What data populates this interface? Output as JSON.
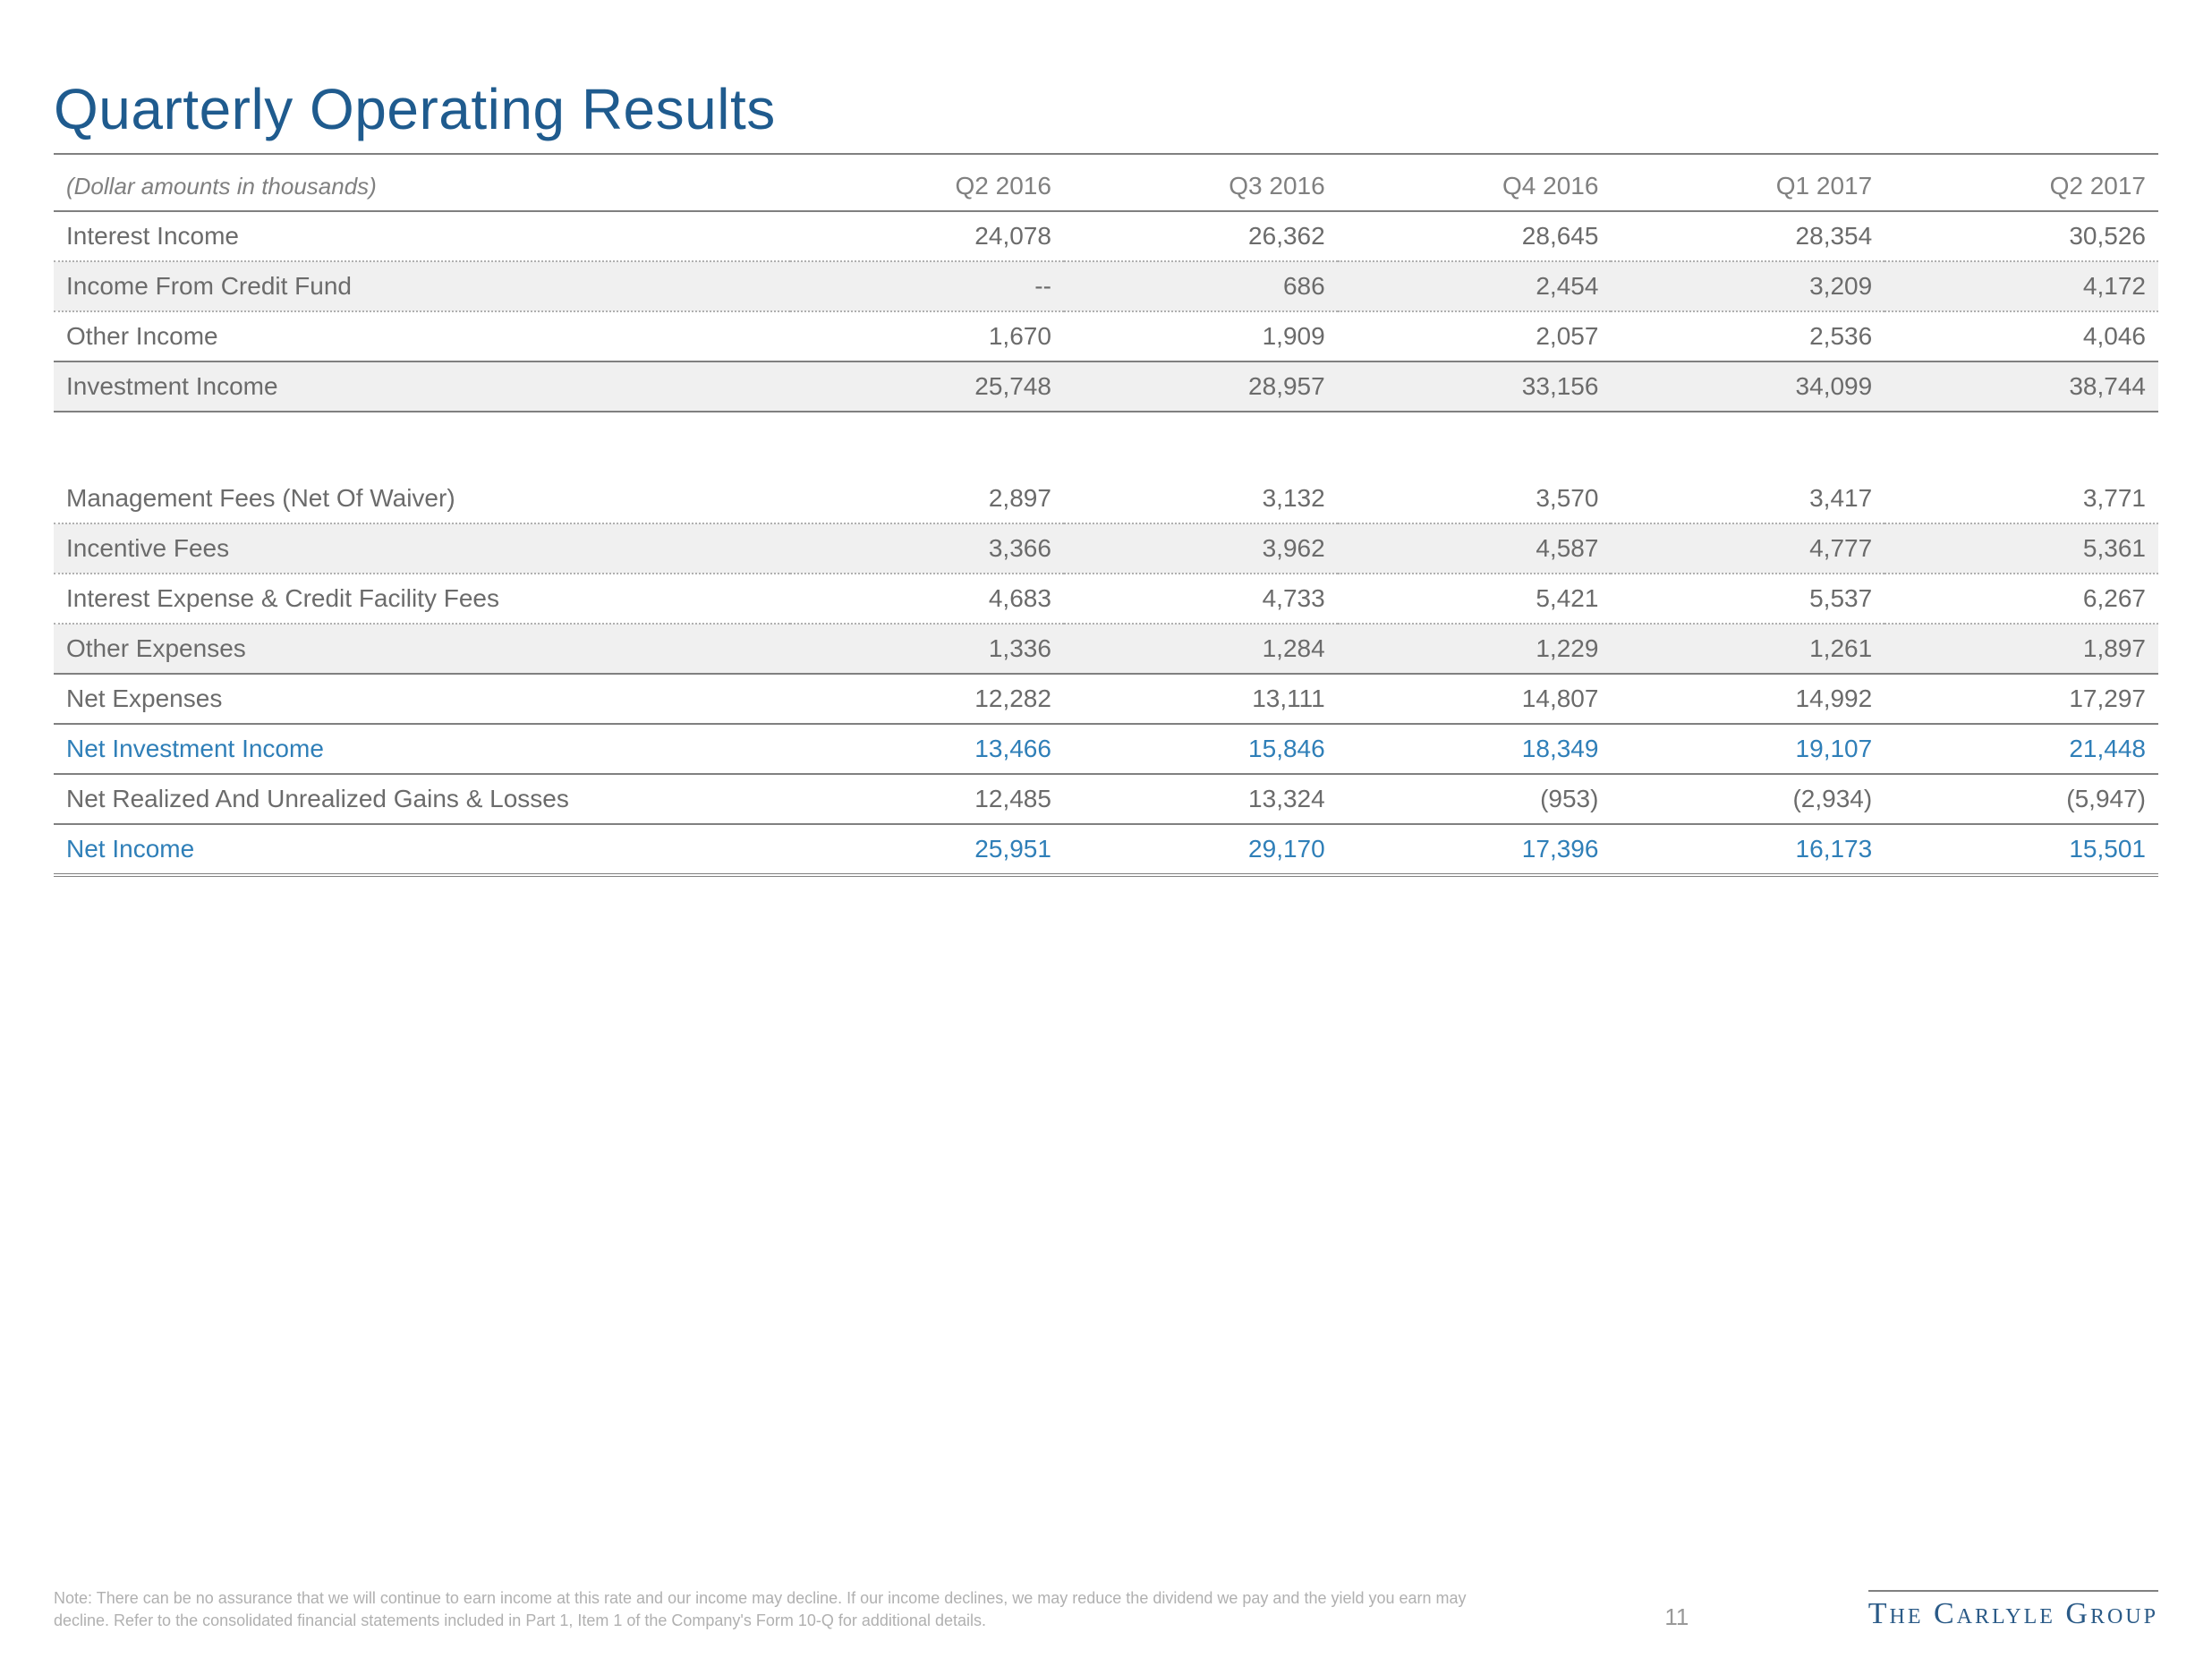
{
  "title": "Quarterly Operating Results",
  "header_label": "(Dollar amounts in thousands)",
  "columns": [
    "Q2 2016",
    "Q3 2016",
    "Q4 2016",
    "Q1 2017",
    "Q2 2017"
  ],
  "rows": [
    {
      "label": "Interest Income",
      "vals": [
        "24,078",
        "26,362",
        "28,645",
        "28,354",
        "30,526"
      ],
      "cls": "dotted"
    },
    {
      "label": "Income From Credit Fund",
      "vals": [
        "--",
        "686",
        "2,454",
        "3,209",
        "4,172"
      ],
      "cls": "shaded dotted"
    },
    {
      "label": "Other Income",
      "vals": [
        "1,670",
        "1,909",
        "2,057",
        "2,536",
        "4,046"
      ],
      "cls": "dotted"
    },
    {
      "label": "Investment Income",
      "vals": [
        "25,748",
        "28,957",
        "33,156",
        "34,099",
        "38,744"
      ],
      "cls": "shaded subtotal"
    },
    {
      "label": "",
      "vals": [
        "",
        "",
        "",
        "",
        ""
      ],
      "cls": "gap"
    },
    {
      "label": "Management Fees (Net Of Waiver)",
      "vals": [
        "2,897",
        "3,132",
        "3,570",
        "3,417",
        "3,771"
      ],
      "cls": "dotted"
    },
    {
      "label": "Incentive Fees",
      "vals": [
        "3,366",
        "3,962",
        "4,587",
        "4,777",
        "5,361"
      ],
      "cls": "shaded dotted"
    },
    {
      "label": "Interest Expense & Credit Facility Fees",
      "vals": [
        "4,683",
        "4,733",
        "5,421",
        "5,537",
        "6,267"
      ],
      "cls": "dotted"
    },
    {
      "label": "Other Expenses",
      "vals": [
        "1,336",
        "1,284",
        "1,229",
        "1,261",
        "1,897"
      ],
      "cls": "shaded dotted"
    },
    {
      "label": "Net Expenses",
      "vals": [
        "12,282",
        "13,111",
        "14,807",
        "14,992",
        "17,297"
      ],
      "cls": "subtotal"
    },
    {
      "label": "Net Investment Income",
      "vals": [
        "13,466",
        "15,846",
        "18,349",
        "19,107",
        "21,448"
      ],
      "cls": "highlight-single"
    },
    {
      "label": "Net Realized And Unrealized Gains & Losses",
      "vals": [
        "12,485",
        "13,324",
        "(953)",
        "(2,934)",
        "(5,947)"
      ],
      "cls": ""
    },
    {
      "label": "Net Income",
      "vals": [
        "25,951",
        "29,170",
        "17,396",
        "16,173",
        "15,501"
      ],
      "cls": "highlight"
    }
  ],
  "footnote": "Note: There can be no assurance that we will continue to earn income at this rate and our income may decline. If our income declines, we may reduce the dividend we pay and the yield you earn may decline. Refer to the consolidated financial statements included in Part 1, Item 1 of the Company's Form 10-Q for additional details.",
  "page_number": "11",
  "brand": "The Carlyle Group",
  "colors": {
    "title": "#1f5b8e",
    "highlight": "#2f7fb8",
    "body_text": "#6b6b6b",
    "rule": "#808080",
    "shaded_bg": "#f0f0f0",
    "background": "#ffffff"
  },
  "typography": {
    "title_fontsize": 64,
    "cell_fontsize": 28,
    "footnote_fontsize": 18,
    "brand_fontsize": 34
  }
}
